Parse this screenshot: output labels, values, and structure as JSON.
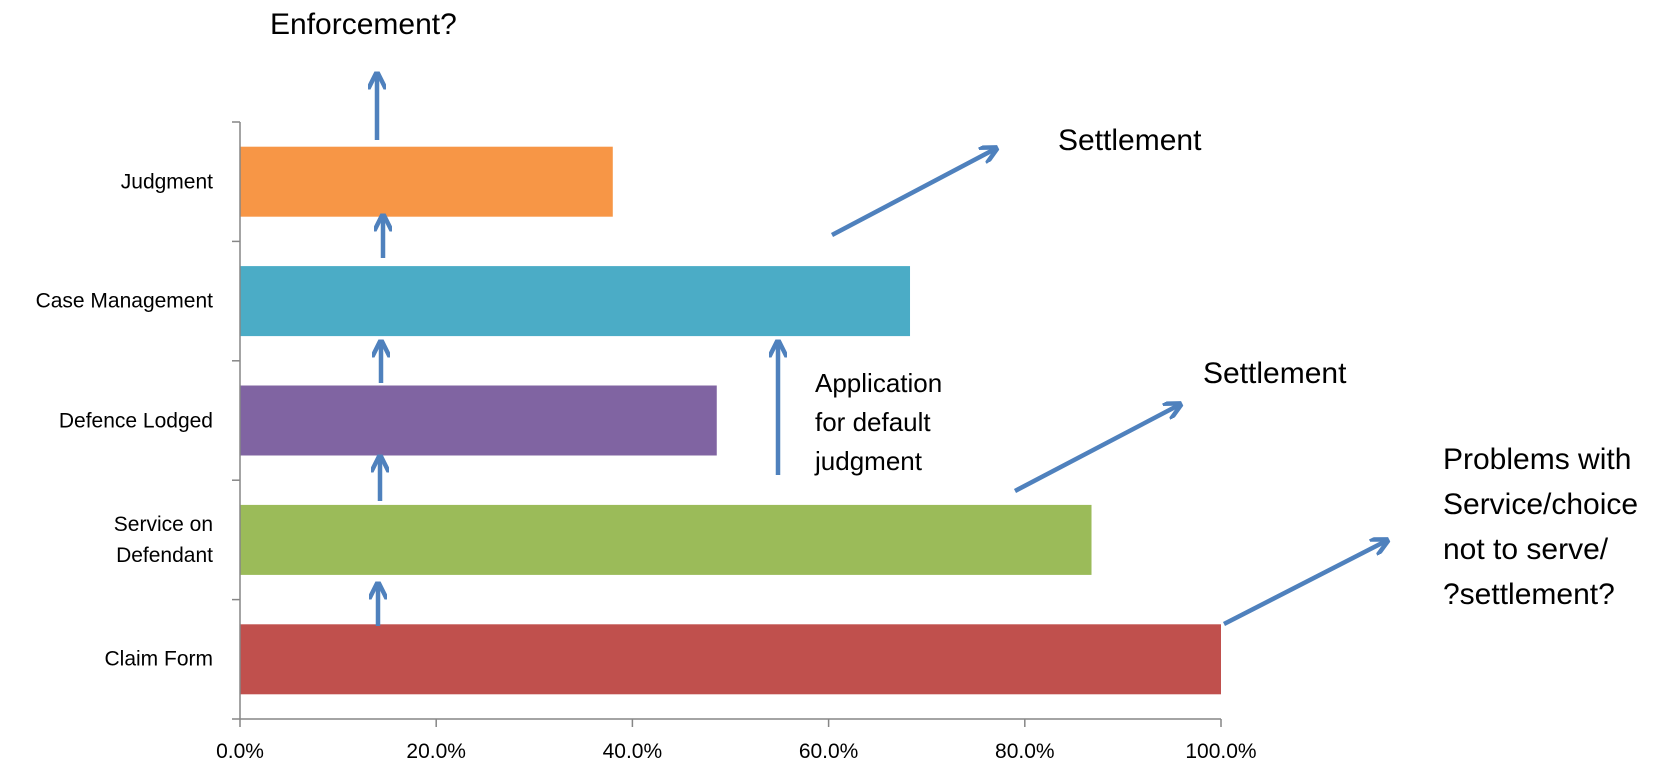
{
  "chart_data": {
    "type": "bar",
    "orientation": "horizontal",
    "categories": [
      "Judgment",
      "Case Management",
      "Defence Lodged",
      "Service on\nDefendant",
      "Claim Form"
    ],
    "values": [
      38.0,
      68.3,
      48.6,
      86.8,
      100.0
    ],
    "colors": [
      "#f79646",
      "#4bacc6",
      "#8064a2",
      "#9bbb59",
      "#c0504d"
    ],
    "xlim": [
      0,
      100
    ],
    "xticks": [
      {
        "value": 0,
        "label": "0.0%"
      },
      {
        "value": 20,
        "label": "20.0%"
      },
      {
        "value": 40,
        "label": "40.0%"
      },
      {
        "value": 60,
        "label": "60.0%"
      },
      {
        "value": 80,
        "label": "80.0%"
      },
      {
        "value": 100,
        "label": "100.0%"
      }
    ],
    "grid": false,
    "annotations": [
      "Enforcement?",
      "Settlement",
      "Application\nfor default\njudgment",
      "Settlement",
      "Problems with\nService/choice\nnot to serve/\n?settlement?"
    ]
  }
}
